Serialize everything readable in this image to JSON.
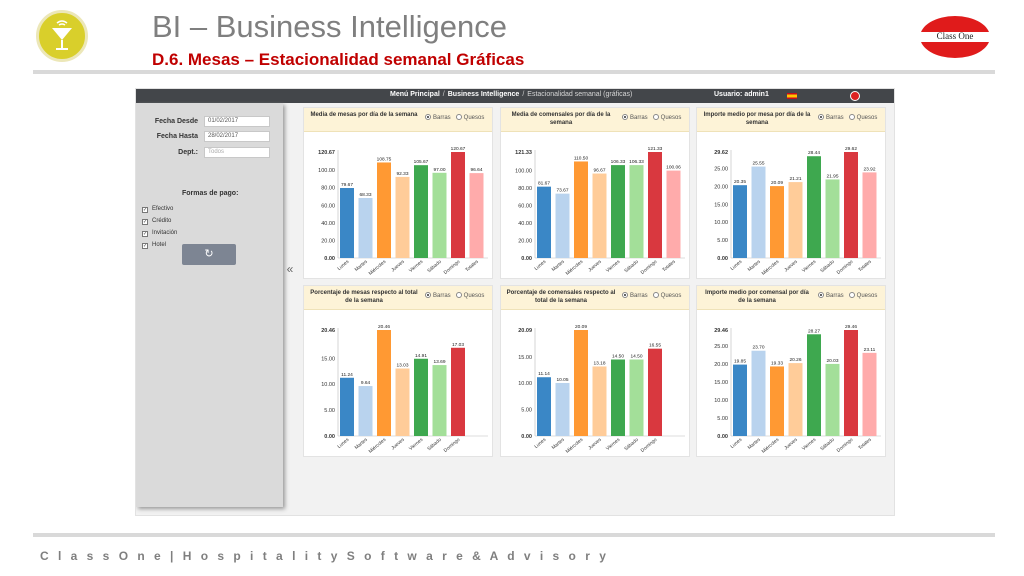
{
  "slide": {
    "title": "BI – Business Intelligence",
    "subtitle": "D.6. Mesas – Estacionalidad semanal Gráficas",
    "logo_right_text": "Class One",
    "footer": "C l a s s O n e | H o s p i t a l i t y S o f t w a r e & A d v i s o r y"
  },
  "app": {
    "breadcrumb": {
      "home": "Menú Principal",
      "section": "Business Intelligence",
      "current": "Estacionalidad semanal (gráficas)",
      "separator": "/"
    },
    "user": "Usuario: admin1",
    "filters": {
      "date_from_label": "Fecha Desde",
      "date_from_value": "01/02/2017",
      "date_to_label": "Fecha Hasta",
      "date_to_value": "28/02/2017",
      "dept_label": "Dept.:",
      "dept_placeholder": "Todos",
      "payment_title": "Formas de pago:",
      "payments": [
        {
          "label": "Efectivo",
          "checked": true
        },
        {
          "label": "Crédito",
          "checked": true
        },
        {
          "label": "Invitación",
          "checked": true
        },
        {
          "label": "Hotel",
          "checked": true
        }
      ],
      "refresh_icon": "refresh-icon",
      "collapse_glyph": "«"
    },
    "view_options": {
      "bars": "Barras",
      "pies": "Quesos",
      "selected": "Barras"
    }
  },
  "colors": [
    "#3a87c6",
    "#b9d3ee",
    "#ff9933",
    "#ffcc99",
    "#3ea84f",
    "#a3df99",
    "#d9383f",
    "#ffabab"
  ],
  "chart_data": [
    {
      "type": "bar",
      "title": "Media de mesas por día de la semana",
      "categories": [
        "Lunes",
        "Martes",
        "Miércoles",
        "Jueves",
        "Viernes",
        "Sábado",
        "Domingo",
        "Totales"
      ],
      "values": [
        79.67,
        68.33,
        108.75,
        92.33,
        105.67,
        97.0,
        120.67,
        96.64
      ],
      "value_labels": [
        "79.67",
        "68.33",
        "108.75",
        "92.33",
        "105.67",
        "97.00",
        "120.67",
        "96.64"
      ],
      "ylim": [
        0,
        120.67
      ],
      "yticks": [
        "0.00",
        "20.00",
        "40.00",
        "60.00",
        "80.00",
        "100.00",
        "120.67"
      ],
      "grid": false,
      "legend": "none"
    },
    {
      "type": "bar",
      "title": "Media de comensales por día de la semana",
      "categories": [
        "Lunes",
        "Martes",
        "Miércoles",
        "Jueves",
        "Viernes",
        "Sábado",
        "Domingo",
        "Totales"
      ],
      "values": [
        81.67,
        73.67,
        110.5,
        96.67,
        106.33,
        106.33,
        121.33,
        100.06
      ],
      "value_labels": [
        "81.67",
        "73.67",
        "110.50",
        "96.67",
        "106.33",
        "106.33",
        "121.33",
        "100.06"
      ],
      "ylim": [
        0,
        121.33
      ],
      "yticks": [
        "0.00",
        "20.00",
        "40.00",
        "60.00",
        "80.00",
        "100.00",
        "121.33"
      ],
      "grid": false,
      "legend": "none"
    },
    {
      "type": "bar",
      "title": "Importe medio por mesa por día de la semana",
      "categories": [
        "Lunes",
        "Martes",
        "Miércoles",
        "Jueves",
        "Viernes",
        "Sábado",
        "Domingo",
        "Totales"
      ],
      "values": [
        20.35,
        25.55,
        20.09,
        21.21,
        28.44,
        21.95,
        29.62,
        23.92
      ],
      "value_labels": [
        "20.35",
        "25.55",
        "20.09",
        "21.21",
        "28.44",
        "21.95",
        "29.62",
        "23.92"
      ],
      "ylim": [
        0,
        29.62
      ],
      "yticks": [
        "0.00",
        "5.00",
        "10.00",
        "15.00",
        "20.00",
        "25.00",
        "29.62"
      ],
      "grid": false,
      "legend": "none"
    },
    {
      "type": "bar",
      "title": "Porcentaje de mesas respecto al total de la semana",
      "categories": [
        "Lunes",
        "Martes",
        "Miércoles",
        "Jueves",
        "Viernes",
        "Sábado",
        "Domingo"
      ],
      "values": [
        11.24,
        9.64,
        20.46,
        13.03,
        14.91,
        13.69,
        17.03
      ],
      "value_labels": [
        "11.24",
        "9.64",
        "20.46",
        "13.03",
        "14.91",
        "13.69",
        "17.03"
      ],
      "ylim": [
        0,
        20.46
      ],
      "yticks": [
        "0.00",
        "5.00",
        "10.00",
        "15.00",
        "20.46"
      ],
      "grid": false,
      "legend": "none"
    },
    {
      "type": "bar",
      "title": "Porcentaje de comensales respecto al total de la semana",
      "categories": [
        "Lunes",
        "Martes",
        "Miércoles",
        "Jueves",
        "Viernes",
        "Sábado",
        "Domingo"
      ],
      "values": [
        11.14,
        10.05,
        20.09,
        13.18,
        14.5,
        14.5,
        16.55
      ],
      "value_labels": [
        "11.14",
        "10.05",
        "20.09",
        "13.18",
        "14.50",
        "14.50",
        "16.55"
      ],
      "ylim": [
        0,
        20.09
      ],
      "yticks": [
        "0.00",
        "5.00",
        "10.00",
        "15.00",
        "20.09"
      ],
      "grid": false,
      "legend": "none"
    },
    {
      "type": "bar",
      "title": "Importe medio por comensal por día de la semana",
      "categories": [
        "Lunes",
        "Martes",
        "Miércoles",
        "Jueves",
        "Viernes",
        "Sábado",
        "Domingo",
        "Totales"
      ],
      "values": [
        19.85,
        23.7,
        19.33,
        20.26,
        28.27,
        20.03,
        29.46,
        23.11
      ],
      "value_labels": [
        "19.85",
        "23.70",
        "19.33",
        "20.26",
        "28.27",
        "20.03",
        "29.46",
        "23.11"
      ],
      "ylim": [
        0,
        29.46
      ],
      "yticks": [
        "0.00",
        "5.00",
        "10.00",
        "15.00",
        "20.00",
        "25.00",
        "29.46"
      ],
      "grid": false,
      "legend": "none"
    }
  ]
}
